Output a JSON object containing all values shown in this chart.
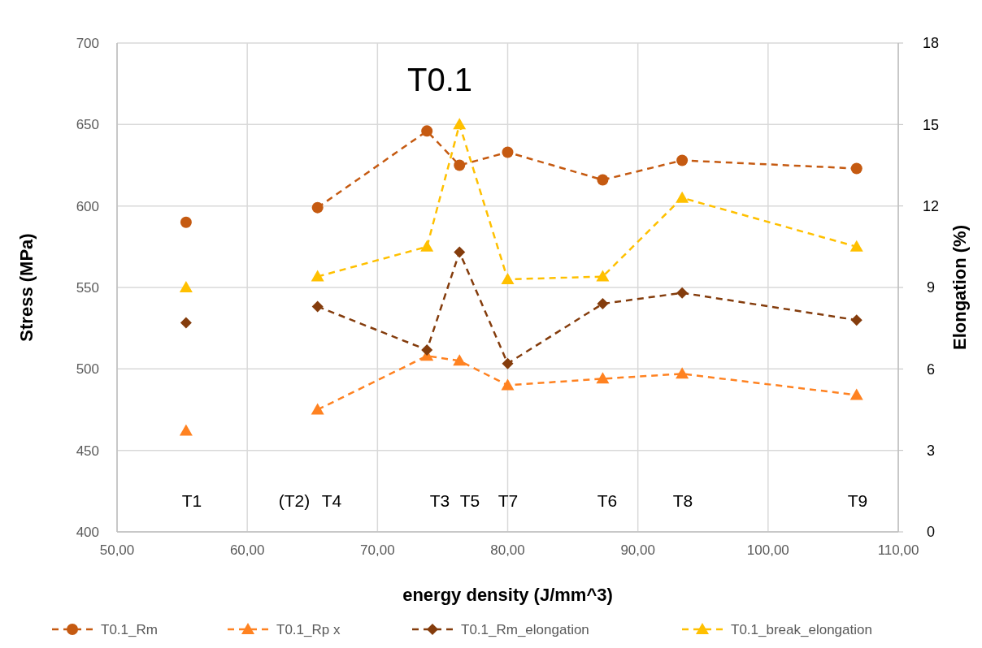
{
  "chart_data": {
    "type": "line",
    "title": "T0.1",
    "xlabel": "energy density (J/mm^3)",
    "ylabel": "Stress (MPa)",
    "y2label": "Elongation (%)",
    "xlim": [
      50,
      110
    ],
    "xticks": [
      {
        "value": 50,
        "label": "50,00"
      },
      {
        "value": 60,
        "label": "60,00"
      },
      {
        "value": 70,
        "label": "70,00"
      },
      {
        "value": 80,
        "label": "80,00"
      },
      {
        "value": 90,
        "label": "90,00"
      },
      {
        "value": 100,
        "label": "100,00"
      },
      {
        "value": 110,
        "label": "110,00"
      }
    ],
    "ylim": [
      400,
      700
    ],
    "yticks": [
      400,
      450,
      500,
      550,
      600,
      650,
      700
    ],
    "y2lim": [
      0,
      18
    ],
    "y2ticks": [
      0,
      3,
      6,
      9,
      12,
      15,
      18
    ],
    "grid": true,
    "legend": "bottom",
    "line_style": "dashed",
    "series": [
      {
        "name": "T0.1_Rm",
        "color": "#c55a11",
        "marker": "circle",
        "x": [
          65.4,
          73.8,
          76.3,
          80.0,
          87.3,
          93.4,
          106.8
        ],
        "values": [
          599,
          646,
          625,
          633,
          616,
          628,
          623
        ]
      },
      {
        "name": "T0.1_Rp x",
        "color": "#ff8221",
        "marker": "triangle",
        "x": [
          65.4,
          73.8,
          76.3,
          80.0,
          87.3,
          93.4,
          106.8
        ],
        "values": [
          475,
          508,
          505,
          490,
          494,
          497,
          484
        ]
      },
      {
        "name": "T0.1_Rm_elongation",
        "color": "#843c0c",
        "marker": "diamond",
        "axis": "y2",
        "x": [
          65.4,
          73.8,
          76.3,
          80.0,
          87.3,
          93.4,
          106.8
        ],
        "values": [
          8.3,
          6.7,
          10.3,
          6.2,
          8.4,
          8.8,
          7.8
        ]
      },
      {
        "name": "T0.1_break_elongation",
        "color": "#ffc000",
        "marker": "triangle",
        "axis": "y2",
        "x": [
          65.4,
          73.8,
          76.3,
          80.0,
          87.3,
          93.4,
          106.8
        ],
        "values": [
          9.4,
          10.5,
          15.0,
          9.3,
          9.4,
          12.3,
          10.5
        ]
      },
      {
        "type": "scatter",
        "color": "#c55a11",
        "marker": "circle",
        "x": [
          55.3
        ],
        "values": [
          590
        ]
      },
      {
        "type": "scatter",
        "color": "#ff8221",
        "marker": "triangle",
        "x": [
          55.3
        ],
        "values": [
          462
        ]
      },
      {
        "type": "scatter",
        "color": "#843c0c",
        "marker": "diamond",
        "axis": "y2",
        "x": [
          55.3
        ],
        "values": [
          7.7
        ]
      },
      {
        "type": "scatter",
        "color": "#ffc000",
        "marker": "triangle",
        "axis": "y2",
        "x": [
          55.3
        ],
        "values": [
          9.0
        ]
      }
    ],
    "annotations": [
      "T1",
      "(T2)",
      "T4",
      "T3",
      "T5",
      "T7",
      "T6",
      "T8",
      "T9"
    ]
  }
}
